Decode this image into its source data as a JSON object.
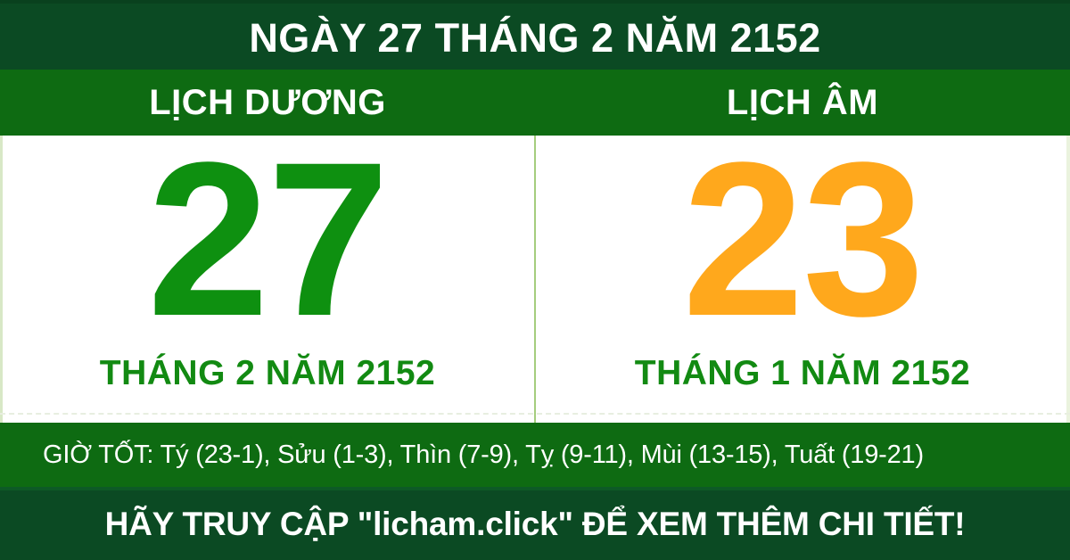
{
  "colors": {
    "dark_green": "#0B4A23",
    "bar_green": "#0E6B12",
    "solar_number_green": "#0E9010",
    "caption_green": "#128A12",
    "lunar_number_orange": "#FFA81C",
    "divider_green": "#A5CD7E",
    "panel_bg": "#FFFFFF"
  },
  "top_banner": {
    "title": "NGÀY 27 THÁNG 2 NĂM 2152"
  },
  "calendar": {
    "solar": {
      "header": "LỊCH DƯƠNG",
      "day": "27",
      "caption": "THÁNG 2 NĂM 2152"
    },
    "lunar": {
      "header": "LỊCH ÂM",
      "day": "23",
      "caption": "THÁNG 1 NĂM 2152"
    }
  },
  "good_hours": {
    "label": "GIỜ TỐT:",
    "slots": [
      "Tý (23-1)",
      "Sửu (1-3)",
      "Thìn (7-9)",
      "Tỵ (9-11)",
      "Mùi (13-15)",
      "Tuất (19-21)"
    ],
    "text": "GIỜ TỐT: Tý (23-1), Sửu (1-3), Thìn (7-9), Tỵ (9-11), Mùi (13-15), Tuất (19-21)"
  },
  "footer": {
    "cta": "HÃY TRUY CẬP \"licham.click\" ĐỂ XEM THÊM CHI TIẾT!"
  }
}
